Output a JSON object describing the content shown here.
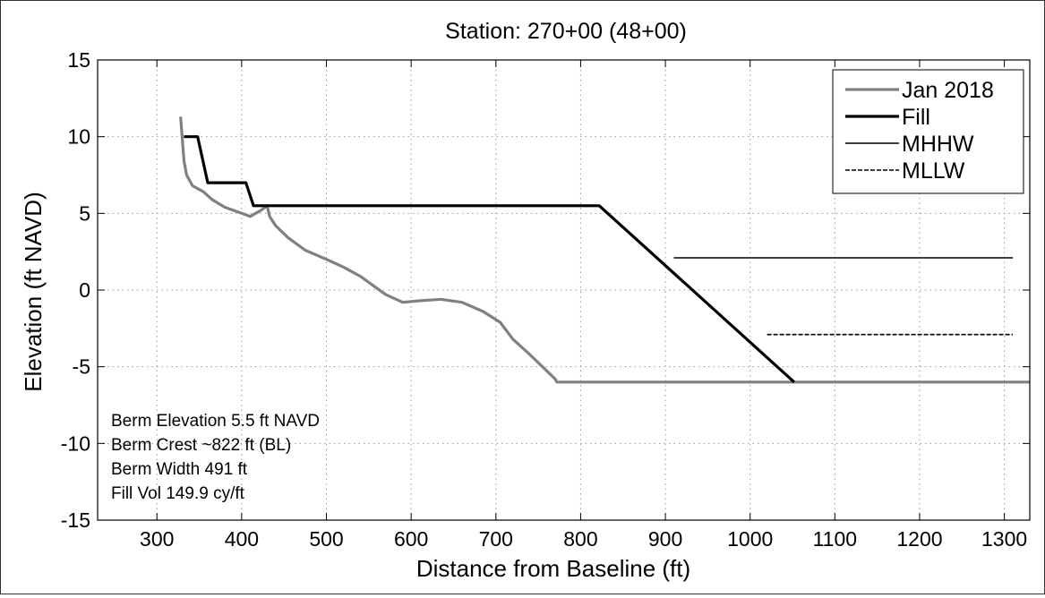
{
  "chart_data": {
    "type": "line",
    "title": "Station: 270+00 (48+00)",
    "xlabel": "Distance from Baseline (ft)",
    "ylabel": "Elevation (ft NAVD)",
    "xlim": [
      230,
      1330
    ],
    "ylim": [
      -15,
      15
    ],
    "xticks": [
      300,
      400,
      500,
      600,
      700,
      800,
      900,
      1000,
      1100,
      1200,
      1300
    ],
    "yticks": [
      -15,
      -10,
      -5,
      0,
      5,
      10,
      15
    ],
    "xtick_labels": [
      "300",
      "400",
      "500",
      "600",
      "700",
      "800",
      "900",
      "1000",
      "1100",
      "1200",
      "1300"
    ],
    "ytick_labels": [
      "-15",
      "-10",
      "-5",
      "0",
      "5",
      "10",
      "15"
    ],
    "grid": true,
    "legend_position": "top-right",
    "series": [
      {
        "name": "Jan 2018",
        "color": "#808080",
        "style": "solid",
        "width": "thick",
        "x": [
          328,
          332,
          335,
          342,
          355,
          365,
          380,
          400,
          410,
          423,
          430,
          433,
          440,
          455,
          475,
          500,
          520,
          540,
          555,
          570,
          590,
          610,
          635,
          660,
          685,
          705,
          720,
          740,
          755,
          770,
          772,
          1330
        ],
        "y": [
          11.3,
          8.4,
          7.5,
          6.8,
          6.4,
          5.9,
          5.4,
          5.0,
          4.8,
          5.2,
          5.5,
          4.8,
          4.2,
          3.4,
          2.6,
          2.0,
          1.5,
          0.9,
          0.3,
          -0.3,
          -0.8,
          -0.7,
          -0.6,
          -0.8,
          -1.4,
          -2.1,
          -3.2,
          -4.2,
          -5.0,
          -5.8,
          -6.0,
          -6.0
        ]
      },
      {
        "name": "Fill",
        "color": "#000000",
        "style": "solid",
        "width": "thick",
        "x": [
          332,
          348,
          360,
          405,
          414,
          822,
          1052
        ],
        "y": [
          10.0,
          10.0,
          7.0,
          7.0,
          5.5,
          5.5,
          -6.0
        ]
      },
      {
        "name": "MHHW",
        "color": "#000000",
        "style": "solid",
        "width": "thin",
        "x": [
          910,
          1310
        ],
        "y": [
          2.1,
          2.1
        ]
      },
      {
        "name": "MLLW",
        "color": "#000000",
        "style": "dashed",
        "width": "thin",
        "x": [
          1020,
          1310
        ],
        "y": [
          -2.9,
          -2.9
        ]
      }
    ],
    "annotations": [
      "Berm Elevation 5.5 ft NAVD",
      "Berm Crest ~822 ft (BL)",
      "Berm Width 491 ft",
      "Fill Vol 149.9 cy/ft"
    ]
  }
}
